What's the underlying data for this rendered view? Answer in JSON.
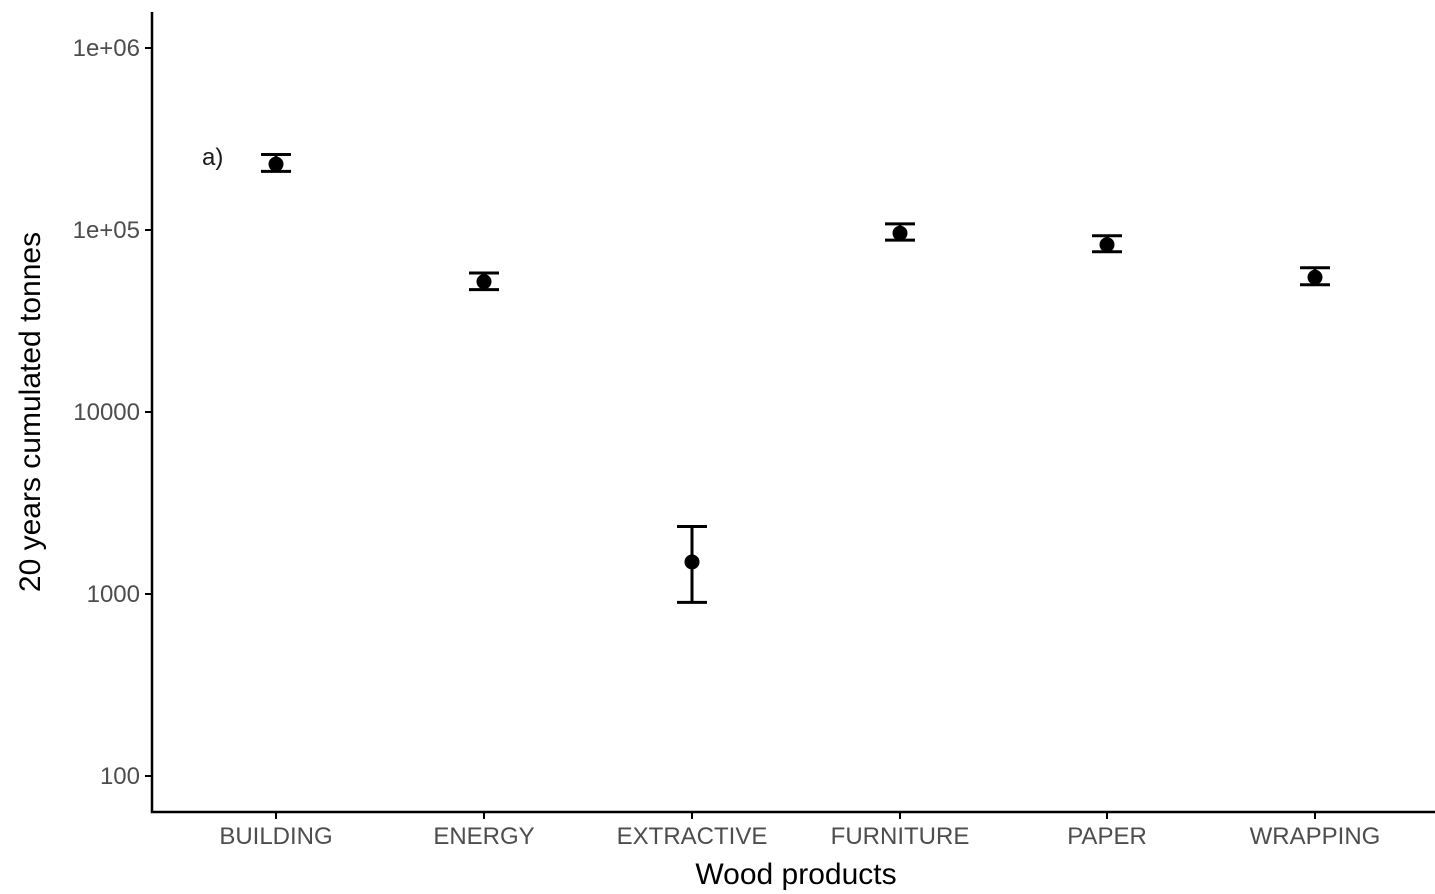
{
  "chart_data": {
    "type": "scatter",
    "subtype": "point-with-error-bars",
    "panel_label": "a)",
    "xlabel": "Wood products",
    "ylabel": "20 years cumulated tonnes",
    "y_scale": "log10",
    "ylim": [
      70,
      1600000
    ],
    "y_ticks": [
      {
        "value": 100,
        "label": "100"
      },
      {
        "value": 1000,
        "label": "1000"
      },
      {
        "value": 10000,
        "label": "10000"
      },
      {
        "value": 100000,
        "label": "1e+05"
      },
      {
        "value": 1000000,
        "label": "1e+06"
      }
    ],
    "grid": false,
    "legend": "none",
    "categories": [
      "BUILDING",
      "ENERGY",
      "EXTRACTIVE",
      "FURNITURE",
      "PAPER",
      "WRAPPING"
    ],
    "points": [
      {
        "category": "BUILDING",
        "y": 230000,
        "lower": 210000,
        "upper": 260000
      },
      {
        "category": "ENERGY",
        "y": 52000,
        "lower": 47000,
        "upper": 58000
      },
      {
        "category": "EXTRACTIVE",
        "y": 1500,
        "lower": 900,
        "upper": 2350
      },
      {
        "category": "FURNITURE",
        "y": 96000,
        "lower": 88000,
        "upper": 108000
      },
      {
        "category": "PAPER",
        "y": 83000,
        "lower": 76000,
        "upper": 93000
      },
      {
        "category": "WRAPPING",
        "y": 55000,
        "lower": 50000,
        "upper": 62000
      }
    ],
    "colors": {
      "marks": "#000000",
      "axis": "#000000",
      "tick_labels": "#4d4d4d"
    }
  }
}
